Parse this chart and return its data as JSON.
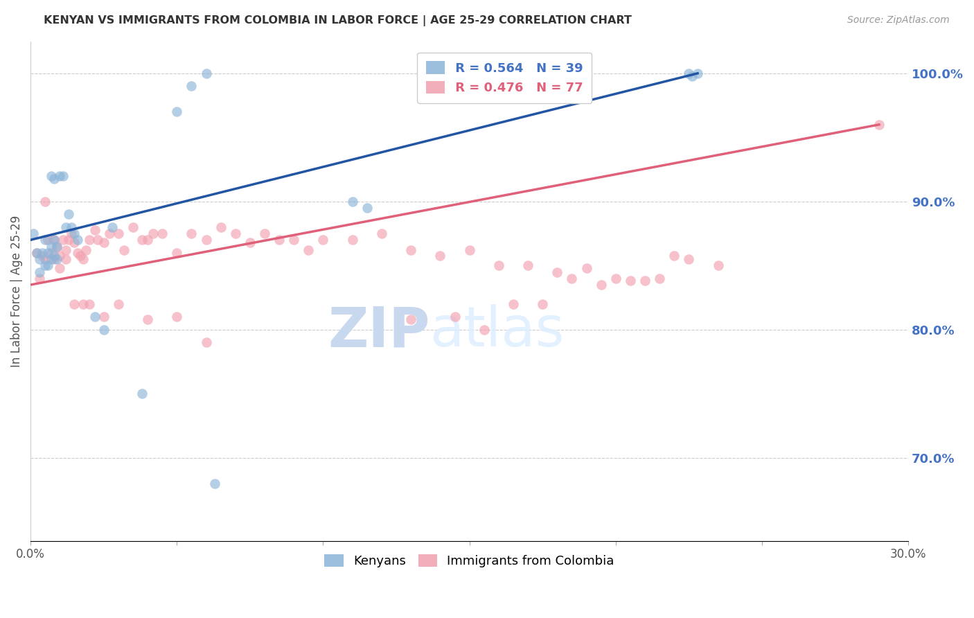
{
  "title": "KENYAN VS IMMIGRANTS FROM COLOMBIA IN LABOR FORCE | AGE 25-29 CORRELATION CHART",
  "source": "Source: ZipAtlas.com",
  "ylabel": "In Labor Force | Age 25-29",
  "xlim": [
    0.0,
    0.3
  ],
  "ylim": [
    0.635,
    1.025
  ],
  "right_yticks": [
    0.7,
    0.8,
    0.9,
    1.0
  ],
  "right_yticklabels": [
    "70.0%",
    "80.0%",
    "90.0%",
    "100.0%"
  ],
  "bottom_xticks": [
    0.0,
    0.05,
    0.1,
    0.15,
    0.2,
    0.25,
    0.3
  ],
  "bottom_xticklabels": [
    "0.0%",
    "",
    "",
    "",
    "",
    "",
    "30.0%"
  ],
  "kenyan_R": 0.564,
  "kenyan_N": 39,
  "colombia_R": 0.476,
  "colombia_N": 77,
  "blue_color": "#8ab4d8",
  "pink_color": "#f2a0b0",
  "blue_line_color": "#2255a4",
  "pink_line_color": "#e0607a",
  "legend_blue_text_color": "#4472c4",
  "legend_pink_text_color": "#e0607a",
  "title_color": "#333333",
  "axis_label_color": "#555555",
  "right_tick_color": "#4472c4",
  "grid_color": "#cccccc",
  "watermark_zip_color": "#c8d8ee",
  "watermark_atlas_color": "#c8d8ee",
  "kenyan_x": [
    0.001,
    0.002,
    0.003,
    0.003,
    0.004,
    0.005,
    0.005,
    0.006,
    0.006,
    0.007,
    0.007,
    0.008,
    0.008,
    0.009,
    0.009,
    0.01,
    0.011,
    0.012,
    0.013,
    0.014,
    0.015,
    0.016,
    0.022,
    0.025,
    0.028,
    0.055,
    0.06,
    0.063,
    0.11,
    0.115,
    0.186,
    0.19,
    0.225,
    0.226,
    0.228,
    0.007,
    0.008,
    0.05,
    0.038
  ],
  "kenyan_y": [
    0.875,
    0.86,
    0.855,
    0.845,
    0.86,
    0.87,
    0.85,
    0.86,
    0.85,
    0.865,
    0.855,
    0.87,
    0.858,
    0.855,
    0.865,
    0.92,
    0.92,
    0.88,
    0.89,
    0.88,
    0.875,
    0.87,
    0.81,
    0.8,
    0.88,
    0.99,
    1.0,
    0.68,
    0.9,
    0.895,
    1.0,
    0.995,
    1.0,
    0.998,
    1.0,
    0.92,
    0.918,
    0.97,
    0.75
  ],
  "colombia_x": [
    0.002,
    0.003,
    0.004,
    0.005,
    0.006,
    0.007,
    0.008,
    0.009,
    0.01,
    0.011,
    0.012,
    0.013,
    0.014,
    0.015,
    0.016,
    0.017,
    0.018,
    0.019,
    0.02,
    0.022,
    0.023,
    0.025,
    0.027,
    0.03,
    0.032,
    0.035,
    0.038,
    0.04,
    0.042,
    0.045,
    0.05,
    0.055,
    0.06,
    0.065,
    0.07,
    0.075,
    0.08,
    0.085,
    0.09,
    0.095,
    0.1,
    0.11,
    0.12,
    0.13,
    0.14,
    0.15,
    0.16,
    0.17,
    0.18,
    0.19,
    0.2,
    0.21,
    0.22,
    0.29,
    0.005,
    0.008,
    0.01,
    0.012,
    0.015,
    0.018,
    0.02,
    0.025,
    0.03,
    0.04,
    0.05,
    0.06,
    0.13,
    0.145,
    0.155,
    0.165,
    0.175,
    0.185,
    0.195,
    0.205,
    0.215,
    0.225,
    0.235
  ],
  "colombia_y": [
    0.86,
    0.84,
    0.858,
    0.9,
    0.87,
    0.86,
    0.87,
    0.865,
    0.858,
    0.87,
    0.862,
    0.87,
    0.875,
    0.868,
    0.86,
    0.858,
    0.855,
    0.862,
    0.87,
    0.878,
    0.87,
    0.868,
    0.875,
    0.875,
    0.862,
    0.88,
    0.87,
    0.87,
    0.875,
    0.875,
    0.86,
    0.875,
    0.87,
    0.88,
    0.875,
    0.868,
    0.875,
    0.87,
    0.87,
    0.862,
    0.87,
    0.87,
    0.875,
    0.862,
    0.858,
    0.862,
    0.85,
    0.85,
    0.845,
    0.848,
    0.84,
    0.838,
    0.858,
    0.96,
    0.855,
    0.855,
    0.848,
    0.855,
    0.82,
    0.82,
    0.82,
    0.81,
    0.82,
    0.808,
    0.81,
    0.79,
    0.808,
    0.81,
    0.8,
    0.82,
    0.82,
    0.84,
    0.835,
    0.838,
    0.84,
    0.855,
    0.85
  ],
  "blue_line_x0": 0.0,
  "blue_line_y0": 0.87,
  "blue_line_x1": 0.228,
  "blue_line_y1": 1.0,
  "pink_line_x0": 0.0,
  "pink_line_y0": 0.835,
  "pink_line_x1": 0.29,
  "pink_line_y1": 0.96
}
